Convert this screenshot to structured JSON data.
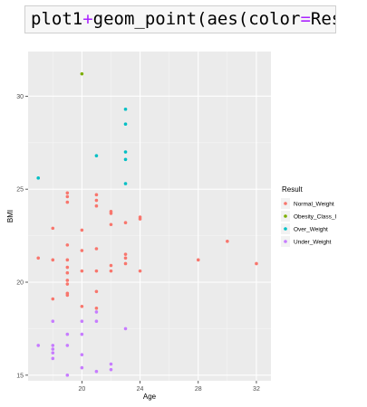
{
  "code": {
    "parts": [
      {
        "text": "plot1",
        "cls": "plain"
      },
      {
        "text": "+",
        "cls": "op"
      },
      {
        "text": "geom_point(aes(color",
        "cls": "plain"
      },
      {
        "text": "=",
        "cls": "op"
      },
      {
        "text": "Result))",
        "cls": "plain"
      }
    ]
  },
  "chart_data": {
    "type": "scatter",
    "xlabel": "Age",
    "ylabel": "BMI",
    "xlim": [
      16.3,
      33
    ],
    "ylim": [
      14.7,
      32.4
    ],
    "xticks": [
      20,
      24,
      28,
      32
    ],
    "yticks": [
      15,
      20,
      25,
      30
    ],
    "grid": true,
    "legend": {
      "title": "Result",
      "position": "right"
    },
    "series": [
      {
        "name": "Normal_Weight",
        "color": "#F8766D",
        "points": [
          [
            17,
            21.3
          ],
          [
            18,
            22.9
          ],
          [
            18,
            21.2
          ],
          [
            18,
            19.1
          ],
          [
            19,
            24.8
          ],
          [
            19,
            24.6
          ],
          [
            19,
            24.3
          ],
          [
            19,
            22.0
          ],
          [
            19,
            21.2
          ],
          [
            19,
            20.8
          ],
          [
            19,
            20.5
          ],
          [
            19,
            20.1
          ],
          [
            19,
            19.9
          ],
          [
            19,
            19.4
          ],
          [
            19,
            19.3
          ],
          [
            20,
            22.8
          ],
          [
            20,
            21.7
          ],
          [
            20,
            20.6
          ],
          [
            20,
            18.7
          ],
          [
            21,
            24.7
          ],
          [
            21,
            24.4
          ],
          [
            21,
            24.1
          ],
          [
            21,
            21.8
          ],
          [
            21,
            20.6
          ],
          [
            21,
            19.5
          ],
          [
            21,
            18.6
          ],
          [
            22,
            23.8
          ],
          [
            22,
            23.7
          ],
          [
            22,
            23.1
          ],
          [
            22,
            20.9
          ],
          [
            22,
            20.6
          ],
          [
            23,
            23.2
          ],
          [
            23,
            21.5
          ],
          [
            23,
            21.3
          ],
          [
            23,
            21.0
          ],
          [
            24,
            23.5
          ],
          [
            24,
            23.4
          ],
          [
            24,
            20.6
          ],
          [
            28,
            21.2
          ],
          [
            30,
            22.2
          ],
          [
            32,
            21.0
          ]
        ]
      },
      {
        "name": "Obesity_Class_I",
        "color": "#7CAE00",
        "points": [
          [
            20,
            31.2
          ]
        ]
      },
      {
        "name": "Over_Weight",
        "color": "#00BFC4",
        "points": [
          [
            17,
            25.6
          ],
          [
            21,
            26.8
          ],
          [
            23,
            29.3
          ],
          [
            23,
            28.5
          ],
          [
            23,
            27.0
          ],
          [
            23,
            26.6
          ],
          [
            23,
            25.3
          ]
        ]
      },
      {
        "name": "Under_Weight",
        "color": "#C77CFF",
        "points": [
          [
            17,
            16.6
          ],
          [
            18,
            17.9
          ],
          [
            18,
            16.6
          ],
          [
            18,
            16.4
          ],
          [
            18,
            16.2
          ],
          [
            18,
            15.9
          ],
          [
            19,
            17.2
          ],
          [
            19,
            16.6
          ],
          [
            19,
            15.0
          ],
          [
            20,
            17.9
          ],
          [
            20,
            17.2
          ],
          [
            20,
            16.1
          ],
          [
            20,
            15.4
          ],
          [
            21,
            18.4
          ],
          [
            21,
            17.9
          ],
          [
            21,
            15.2
          ],
          [
            22,
            15.6
          ],
          [
            22,
            15.3
          ],
          [
            23,
            17.5
          ]
        ]
      }
    ]
  }
}
